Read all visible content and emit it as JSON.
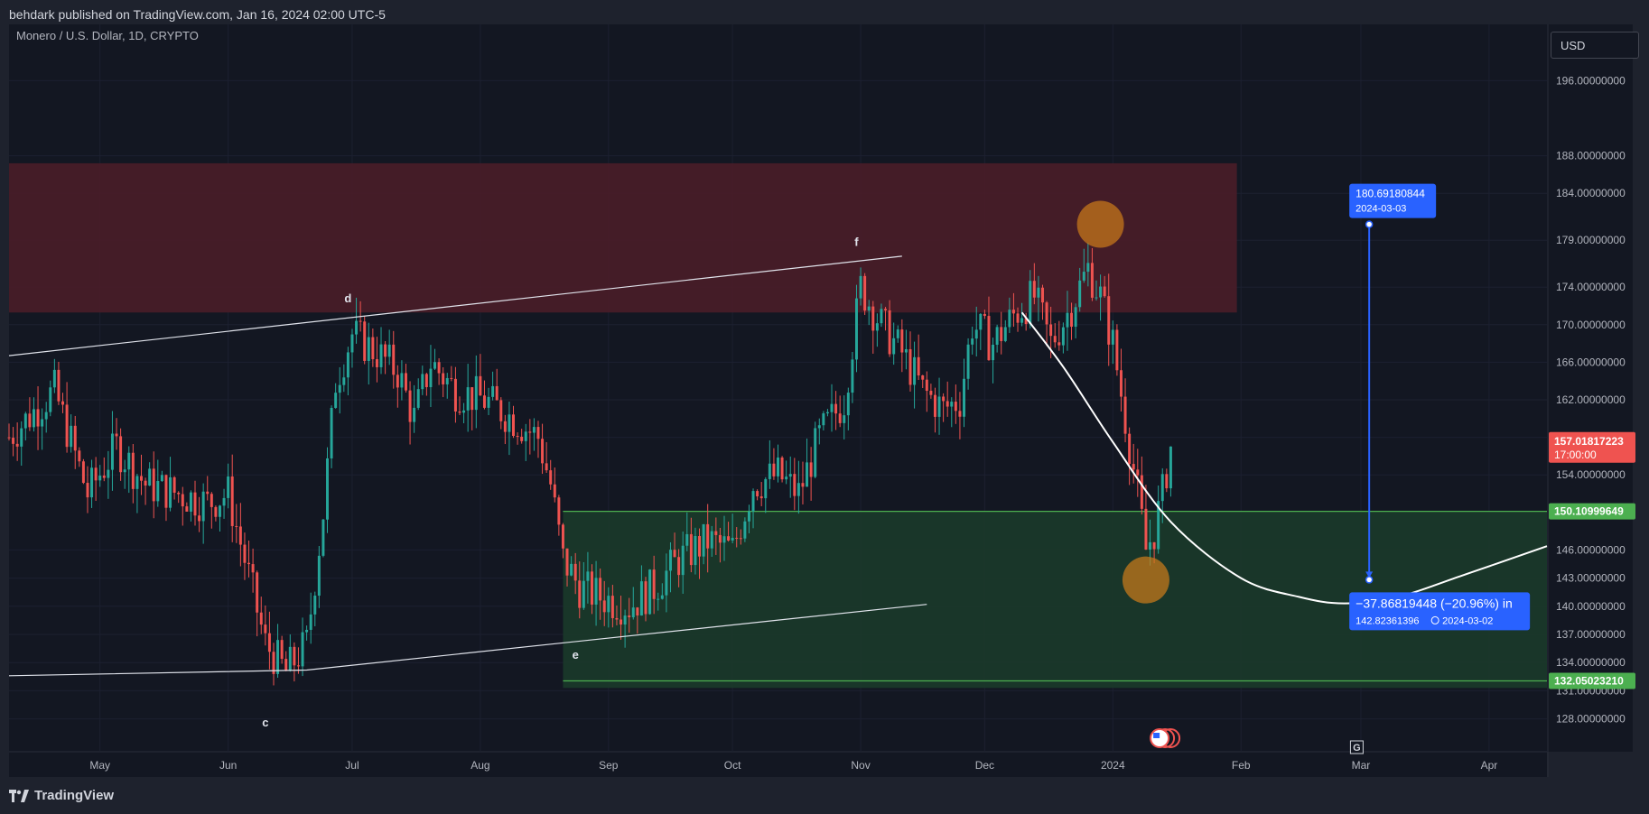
{
  "header": {
    "text": "behdark published on TradingView.com, Jan 16, 2024 02:00 UTC-5"
  },
  "footer": {
    "brand": "TradingView"
  },
  "currency_button": "USD",
  "colors": {
    "background": "#131722",
    "frame": "#1e222d",
    "grid": "#1c2030",
    "up_candle": "#26a69a",
    "down_candle": "#ef5350",
    "resistance_zone": "#4a1d28",
    "support_zone": "#1b3a2a",
    "support_line": "#4caf50",
    "measure": "#2962ff",
    "last_price": "#ef5350",
    "highlight_circle": "#c97a1a"
  },
  "chart_data": {
    "type": "candlestick",
    "title": "Monero / U.S. Dollar, 1D, CRYPTO",
    "y_scale": "linear",
    "ylim": [
      124.5,
      202
    ],
    "xlim": [
      "2023-04-09",
      "2024-04-15"
    ],
    "x_tick_labels": [
      {
        "date": "2023-05-01",
        "label": "May"
      },
      {
        "date": "2023-06-01",
        "label": "Jun"
      },
      {
        "date": "2023-07-01",
        "label": "Jul"
      },
      {
        "date": "2023-08-01",
        "label": "Aug"
      },
      {
        "date": "2023-09-01",
        "label": "Sep"
      },
      {
        "date": "2023-10-01",
        "label": "Oct"
      },
      {
        "date": "2023-11-01",
        "label": "Nov"
      },
      {
        "date": "2023-12-01",
        "label": "Dec"
      },
      {
        "date": "2024-01-01",
        "label": "2024"
      },
      {
        "date": "2024-02-01",
        "label": "Feb"
      },
      {
        "date": "2024-03-01",
        "label": "Mar"
      },
      {
        "date": "2024-04-01",
        "label": "Apr"
      }
    ],
    "y_tick_labels": [
      {
        "value": 128,
        "label": "128.00000000"
      },
      {
        "value": 131,
        "label": "131.00000000"
      },
      {
        "value": 134,
        "label": "134.00000000"
      },
      {
        "value": 137,
        "label": "137.00000000"
      },
      {
        "value": 140,
        "label": "140.00000000"
      },
      {
        "value": 143,
        "label": "143.00000000"
      },
      {
        "value": 146,
        "label": "146.00000000"
      },
      {
        "value": 154,
        "label": "154.00000000"
      },
      {
        "value": 158,
        "label": "158.00000000"
      },
      {
        "value": 162,
        "label": "162.00000000"
      },
      {
        "value": 166,
        "label": "166.00000000"
      },
      {
        "value": 170,
        "label": "170.00000000"
      },
      {
        "value": 174,
        "label": "174.00000000"
      },
      {
        "value": 179,
        "label": "179.00000000"
      },
      {
        "value": 184,
        "label": "184.00000000"
      },
      {
        "value": 188,
        "label": "188.00000000"
      },
      {
        "value": 196,
        "label": "196.00000000"
      }
    ],
    "price_path": [
      [
        "2023-04-09",
        158
      ],
      [
        "2023-04-20",
        163
      ],
      [
        "2023-04-28",
        152
      ],
      [
        "2023-05-05",
        157
      ],
      [
        "2023-05-12",
        153
      ],
      [
        "2023-05-20",
        152
      ],
      [
        "2023-05-27",
        151
      ],
      [
        "2023-06-01",
        152
      ],
      [
        "2023-06-05",
        145
      ],
      [
        "2023-06-10",
        136
      ],
      [
        "2023-06-15",
        133
      ],
      [
        "2023-06-20",
        136
      ],
      [
        "2023-06-24",
        150
      ],
      [
        "2023-06-27",
        164
      ],
      [
        "2023-07-01",
        169
      ],
      [
        "2023-07-07",
        167
      ],
      [
        "2023-07-12",
        165
      ],
      [
        "2023-07-16",
        160
      ],
      [
        "2023-07-20",
        166
      ],
      [
        "2023-07-26",
        163
      ],
      [
        "2023-08-02",
        162
      ],
      [
        "2023-08-09",
        160
      ],
      [
        "2023-08-15",
        158
      ],
      [
        "2023-08-18",
        153
      ],
      [
        "2023-08-21",
        145
      ],
      [
        "2023-08-25",
        142
      ],
      [
        "2023-08-30",
        141
      ],
      [
        "2023-09-06",
        140
      ],
      [
        "2023-09-12",
        142
      ],
      [
        "2023-09-18",
        145
      ],
      [
        "2023-09-25",
        147
      ],
      [
        "2023-10-01",
        146
      ],
      [
        "2023-10-06",
        153
      ],
      [
        "2023-10-12",
        154
      ],
      [
        "2023-10-17",
        152
      ],
      [
        "2023-10-22",
        158
      ],
      [
        "2023-10-28",
        162
      ],
      [
        "2023-11-01",
        174
      ],
      [
        "2023-11-06",
        170
      ],
      [
        "2023-11-11",
        167
      ],
      [
        "2023-11-16",
        163
      ],
      [
        "2023-11-21",
        161
      ],
      [
        "2023-11-25",
        162
      ],
      [
        "2023-11-28",
        170
      ],
      [
        "2023-12-03",
        168
      ],
      [
        "2023-12-08",
        171
      ],
      [
        "2023-12-13",
        173
      ],
      [
        "2023-12-17",
        168
      ],
      [
        "2023-12-22",
        172
      ],
      [
        "2023-12-26",
        176
      ],
      [
        "2023-12-29",
        173
      ],
      [
        "2024-01-01",
        168
      ],
      [
        "2024-01-04",
        160
      ],
      [
        "2024-01-07",
        152
      ],
      [
        "2024-01-09",
        146
      ],
      [
        "2024-01-11",
        148
      ],
      [
        "2024-01-13",
        152
      ],
      [
        "2024-01-15",
        157
      ]
    ],
    "current_price": 157.01817223,
    "countdown": "17:00:00",
    "zones": [
      {
        "name": "resistance",
        "from": "2023-04-09",
        "to": "2024-01-31",
        "top": 187.2,
        "bottom": 171.3
      },
      {
        "name": "support",
        "from": "2023-08-21",
        "to": "2024-04-15",
        "top": 150.10999649,
        "bottom": 131.3
      }
    ],
    "horizontal_levels": [
      {
        "value": 150.10999649,
        "label": "150.10999649"
      },
      {
        "value": 132.0502321,
        "label": "132.05023210"
      }
    ],
    "trendlines": [
      {
        "points": [
          [
            "2023-04-09",
            166.7
          ],
          [
            "2023-11-11",
            177.3
          ]
        ]
      },
      {
        "points": [
          [
            "2023-04-09",
            132.6
          ],
          [
            "2023-06-20",
            133.2
          ],
          [
            "2023-11-17",
            140.2
          ]
        ]
      }
    ],
    "projection_curve": [
      [
        "2023-12-10",
        171.3
      ],
      [
        "2023-12-20",
        165.5
      ],
      [
        "2024-01-01",
        157.5
      ],
      [
        "2024-01-15",
        149.0
      ],
      [
        "2024-02-01",
        143.0
      ],
      [
        "2024-02-15",
        141.0
      ],
      [
        "2024-02-26",
        140.3
      ],
      [
        "2024-03-10",
        141.0
      ],
      [
        "2024-03-25",
        143.2
      ],
      [
        "2024-04-15",
        146.4
      ]
    ],
    "points_labels": [
      {
        "label": "c",
        "date": "2023-06-10",
        "value": 127.2
      },
      {
        "label": "d",
        "date": "2023-06-30",
        "value": 172.4
      },
      {
        "label": "e",
        "date": "2023-08-24",
        "value": 134.4
      },
      {
        "label": "f",
        "date": "2023-10-31",
        "value": 178.4
      },
      {
        "label": "g",
        "date": "2024-03-02",
        "value": 138.2
      }
    ],
    "highlight_circles": [
      {
        "date": "2023-12-29",
        "value": 180.7
      },
      {
        "date": "2024-01-09",
        "value": 142.8
      }
    ],
    "measure": {
      "from": {
        "date": "2024-03-03",
        "value": 180.69180844,
        "label": "180.69180844",
        "date_label": "2024-03-03"
      },
      "to": {
        "date": "2024-03-02",
        "value": 142.82361396,
        "label": "142.82361396",
        "date_label": "2024-03-02"
      },
      "change_label": "−37.86819448 (−20.96%) in"
    },
    "marker_g": {
      "date": "2024-02-29",
      "label": "G"
    }
  }
}
